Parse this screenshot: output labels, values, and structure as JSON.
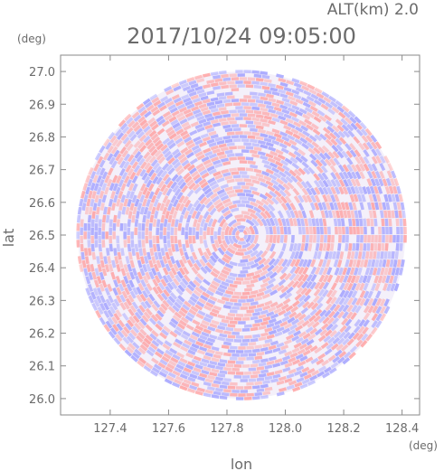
{
  "chart_data": {
    "type": "heatmap",
    "title": "2017/10/24 09:05:00",
    "subtitle": "ALT(km) 2.0",
    "xlabel": "lon",
    "ylabel": "lat",
    "x_unit": "(deg)",
    "y_unit": "(deg)",
    "xlim": [
      127.23,
      128.46
    ],
    "ylim": [
      25.95,
      27.05
    ],
    "x_ticks": [
      "127.4",
      "127.6",
      "127.8",
      "128.0",
      "128.2",
      "128.4"
    ],
    "y_ticks": [
      "27.0",
      "26.9",
      "26.8",
      "26.7",
      "26.6",
      "26.5",
      "26.4",
      "26.3",
      "26.2",
      "26.1",
      "26.0"
    ],
    "center": {
      "lon": 127.85,
      "lat": 26.5
    },
    "radius_deg_lat": 0.5,
    "grid": false,
    "colors": {
      "positive": "#ff9a9a",
      "negative": "#9a9aff",
      "frame": "#8a8a8a",
      "text": "#6b6b6b"
    }
  }
}
